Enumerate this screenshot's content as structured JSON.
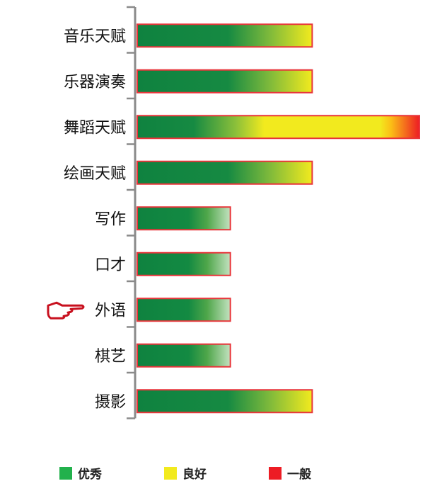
{
  "chart_data": {
    "type": "bar",
    "orientation": "horizontal",
    "title": "",
    "xlabel": "",
    "ylabel": "",
    "value_scale": "relative (longest bar = 100)",
    "categories": [
      "音乐天赋",
      "乐器演奏",
      "舞蹈天赋",
      "绘画天赋",
      "写作",
      "口才",
      "外语",
      "棋艺",
      "摄影"
    ],
    "values": [
      62,
      62,
      100,
      62,
      33,
      33,
      33,
      33,
      62
    ],
    "xlim": [
      0,
      100
    ],
    "grid": false,
    "highlighted_category": "外语",
    "highlight_icon": "pointing-hand-icon",
    "legend": {
      "placement": "bottom",
      "entries": [
        {
          "label": "优秀",
          "color": "#22b14c"
        },
        {
          "label": "良好",
          "color": "#f2ea1e"
        },
        {
          "label": "一般",
          "color": "#ed1c24"
        }
      ]
    },
    "colors": {
      "bar_border": "#e8353a",
      "axis": "#8a8a8a",
      "dark_green": "#0f8240"
    }
  }
}
